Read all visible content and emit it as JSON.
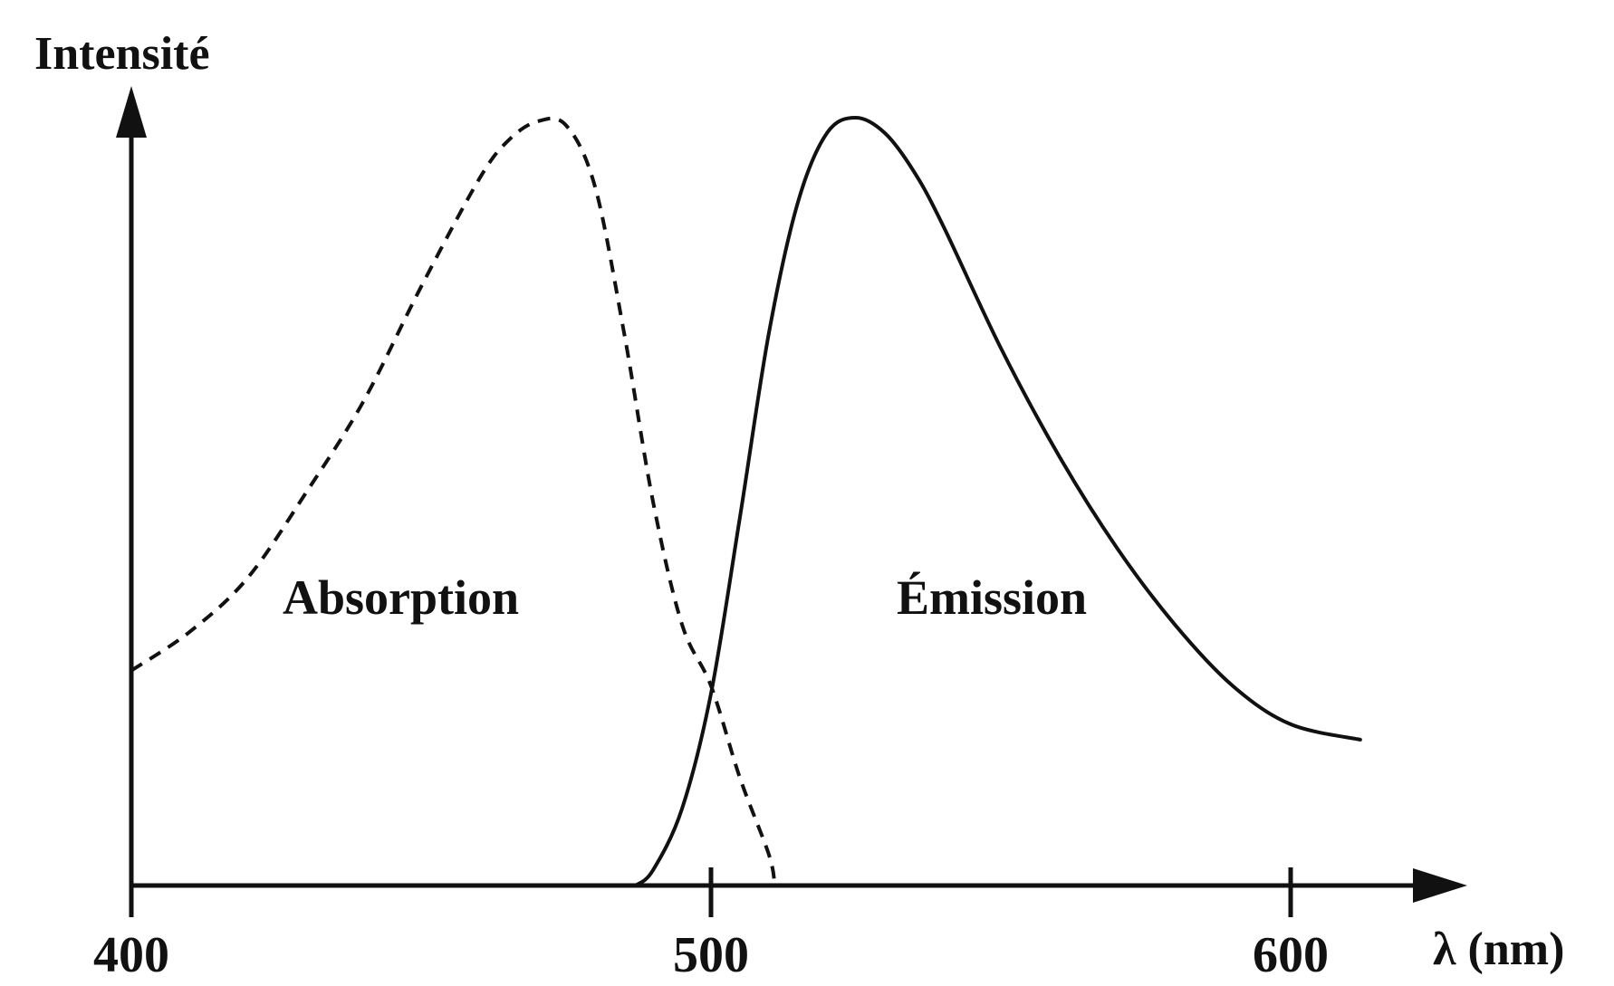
{
  "chart_data": {
    "type": "line",
    "title": "",
    "xlabel": "λ (nm)",
    "ylabel": "Intensité",
    "xlim": [
      400,
      620
    ],
    "ylim": [
      0,
      1
    ],
    "x_ticks": [
      "400",
      "500",
      "600"
    ],
    "x_tick_values": [
      400,
      500,
      600
    ],
    "grid": false,
    "series": [
      {
        "label": "Absorption",
        "style": "dashed",
        "x": [
          400,
          410,
          420,
          430,
          440,
          450,
          460,
          465,
          470,
          475,
          480,
          485,
          490,
          495,
          500,
          505,
          510,
          511
        ],
        "values": [
          0.28,
          0.33,
          0.4,
          0.51,
          0.63,
          0.78,
          0.92,
          0.97,
          0.995,
          0.99,
          0.91,
          0.72,
          0.5,
          0.34,
          0.26,
          0.14,
          0.04,
          0.0
        ]
      },
      {
        "label": "Émission",
        "style": "solid",
        "x": [
          487,
          490,
          495,
          500,
          505,
          510,
          515,
          520,
          525,
          530,
          535,
          540,
          550,
          560,
          570,
          580,
          590,
          600,
          612
        ],
        "values": [
          0.0,
          0.02,
          0.1,
          0.25,
          0.48,
          0.72,
          0.89,
          0.98,
          1.0,
          0.98,
          0.93,
          0.86,
          0.7,
          0.56,
          0.44,
          0.34,
          0.26,
          0.21,
          0.19
        ]
      }
    ]
  }
}
